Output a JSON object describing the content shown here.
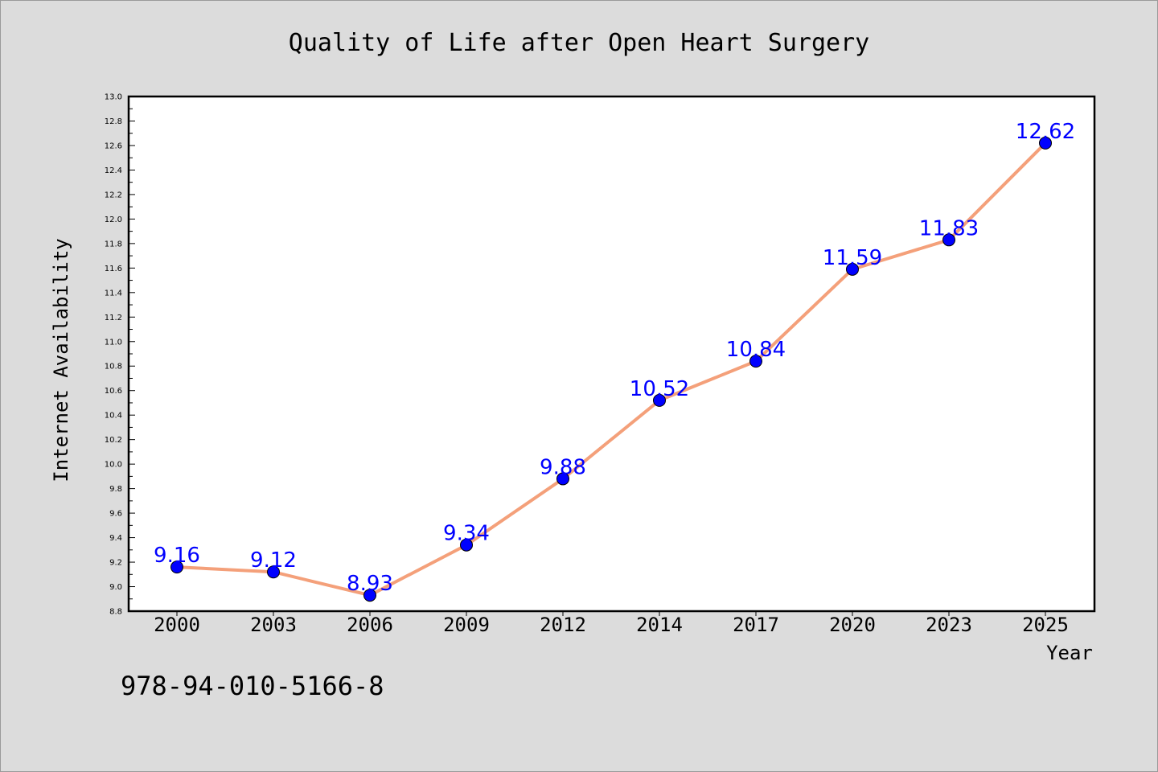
{
  "chart_data": {
    "type": "line",
    "title": "Quality of Life after Open Heart Surgery",
    "xlabel": "Year",
    "ylabel": "Internet Availability",
    "categories": [
      "2000",
      "2003",
      "2006",
      "2009",
      "2012",
      "2014",
      "2017",
      "2020",
      "2023",
      "2025"
    ],
    "series": [
      {
        "values": [
          9.16,
          9.12,
          8.93,
          9.34,
          9.88,
          10.52,
          10.84,
          11.59,
          11.83,
          12.62
        ]
      }
    ],
    "data_labels": [
      "9.16",
      "9.12",
      "8.93",
      "9.34",
      "9.88",
      "10.52",
      "10.84",
      "11.59",
      "11.83",
      "12.62"
    ],
    "ylim": [
      8.8,
      13.0
    ],
    "yticks": [
      "8.8",
      "9.0",
      "9.2",
      "9.4",
      "9.6",
      "9.8",
      "10.0",
      "10.2",
      "10.4",
      "10.6",
      "10.8",
      "11.0",
      "11.2",
      "11.4",
      "11.6",
      "11.8",
      "12.0",
      "12.2",
      "12.4",
      "12.6",
      "12.8",
      "13.0"
    ],
    "grid": false,
    "legend": "none",
    "colors": {
      "line": "#f4a07a",
      "marker": "#0000ff",
      "label": "#0000ff",
      "background": "#dcdcdc",
      "plot_background": "#ffffff"
    }
  },
  "footer": {
    "identifier": "978-94-010-5166-8"
  }
}
